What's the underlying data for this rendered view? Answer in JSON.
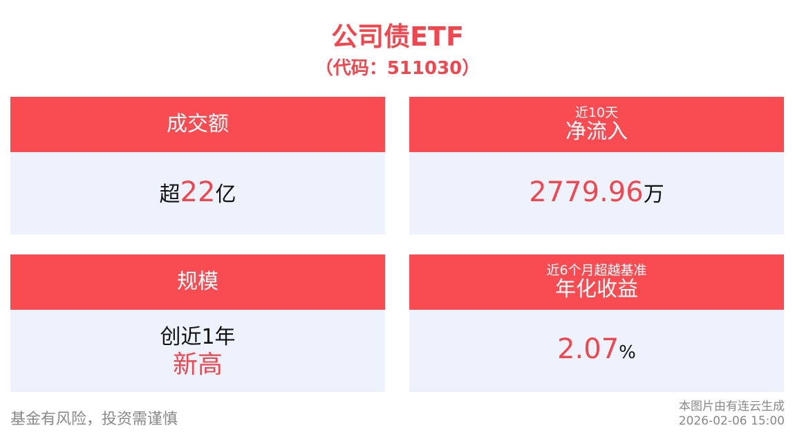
{
  "header": {
    "title": "公司债ETF",
    "subtitle": "（代码：511030）"
  },
  "cards": [
    {
      "heading": "成交额",
      "body": {
        "prefix": "超",
        "value": "22",
        "unit": "亿"
      }
    },
    {
      "subheading": "近10天",
      "heading": "净流入",
      "body": {
        "value": "2779.96",
        "unit": "万"
      }
    },
    {
      "heading": "规模",
      "body": {
        "line": "创近1年",
        "value": "新高"
      }
    },
    {
      "subheading": "近6个月超越基准",
      "heading": "年化收益",
      "body": {
        "value": "2.07",
        "unit": "%"
      }
    }
  ],
  "footer": {
    "disclaimer": "基金有风险，投资需谨慎",
    "source": "本图片由有连云生成",
    "timestamp": "2026-02-06 15:00"
  }
}
